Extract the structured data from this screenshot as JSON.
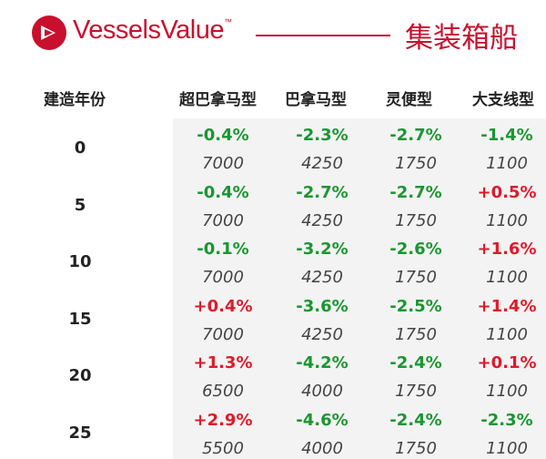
{
  "header": {
    "brand": "VesselsValue",
    "trademark": "™",
    "title": "集装箱船",
    "brand_color": "#c8102e"
  },
  "table": {
    "age_header": "建造年份",
    "columns": [
      "超巴拿马型",
      "巴拿马型",
      "灵便型",
      "大支线型"
    ],
    "rows": [
      {
        "age": "0",
        "changes": [
          "-0.4%",
          "-2.3%",
          "-2.7%",
          "-1.4%"
        ],
        "values": [
          "7000",
          "4250",
          "1750",
          "1100"
        ]
      },
      {
        "age": "5",
        "changes": [
          "-0.4%",
          "-2.7%",
          "-2.7%",
          "+0.5%"
        ],
        "values": [
          "7000",
          "4250",
          "1750",
          "1100"
        ]
      },
      {
        "age": "10",
        "changes": [
          "-0.1%",
          "-3.2%",
          "-2.6%",
          "+1.6%"
        ],
        "values": [
          "7000",
          "4250",
          "1750",
          "1100"
        ]
      },
      {
        "age": "15",
        "changes": [
          "+0.4%",
          "-3.6%",
          "-2.5%",
          "+1.4%"
        ],
        "values": [
          "7000",
          "4250",
          "1750",
          "1100"
        ]
      },
      {
        "age": "20",
        "changes": [
          "+1.3%",
          "-4.2%",
          "-2.4%",
          "+0.1%"
        ],
        "values": [
          "6500",
          "4000",
          "1750",
          "1100"
        ]
      },
      {
        "age": "25",
        "changes": [
          "+2.9%",
          "-4.6%",
          "-2.4%",
          "-2.3%"
        ],
        "values": [
          "5500",
          "4000",
          "1750",
          "1100"
        ]
      }
    ],
    "colors": {
      "negative": "#1a9632",
      "positive": "#e0192a"
    }
  }
}
